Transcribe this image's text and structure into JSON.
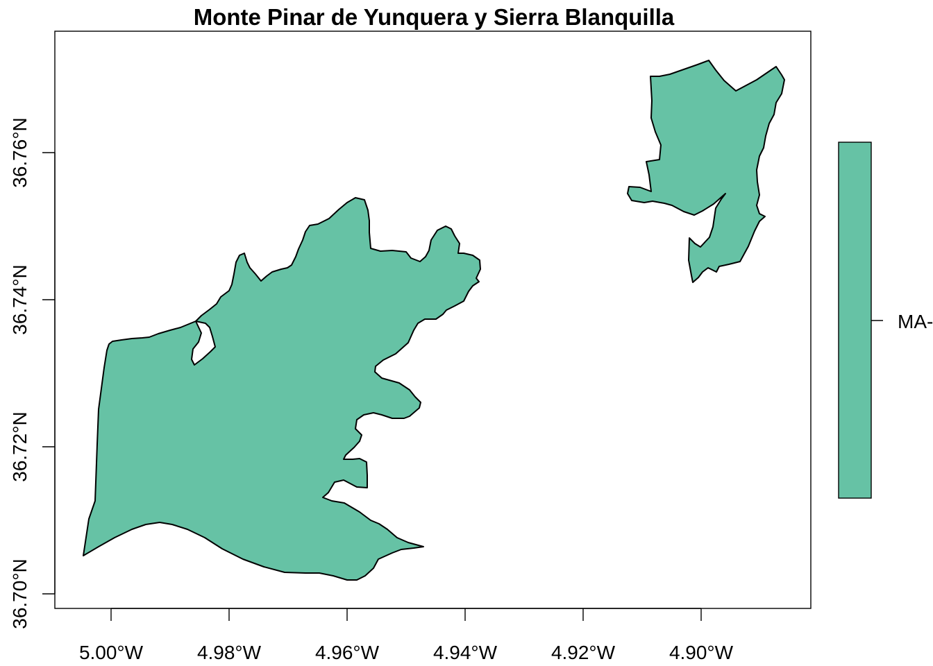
{
  "map": {
    "title": "Monte Pinar de Yunquera y Sierra Blanquilla",
    "fill_color": "#66c2a5",
    "x_axis": {
      "ticks": [
        {
          "value": -5.0,
          "label": "5.00°W"
        },
        {
          "value": -4.98,
          "label": "4.98°W"
        },
        {
          "value": -4.96,
          "label": "4.96°W"
        },
        {
          "value": -4.94,
          "label": "4.94°W"
        },
        {
          "value": -4.92,
          "label": "4.92°W"
        },
        {
          "value": -4.9,
          "label": "4.90°W"
        }
      ]
    },
    "y_axis": {
      "ticks": [
        {
          "value": 36.7,
          "label": "36.70°N"
        },
        {
          "value": 36.72,
          "label": "36.72°N"
        },
        {
          "value": 36.74,
          "label": "36.74°N"
        },
        {
          "value": 36.76,
          "label": "36.76°N"
        }
      ]
    },
    "legend": {
      "label": "MA-",
      "color": "#66c2a5"
    }
  }
}
